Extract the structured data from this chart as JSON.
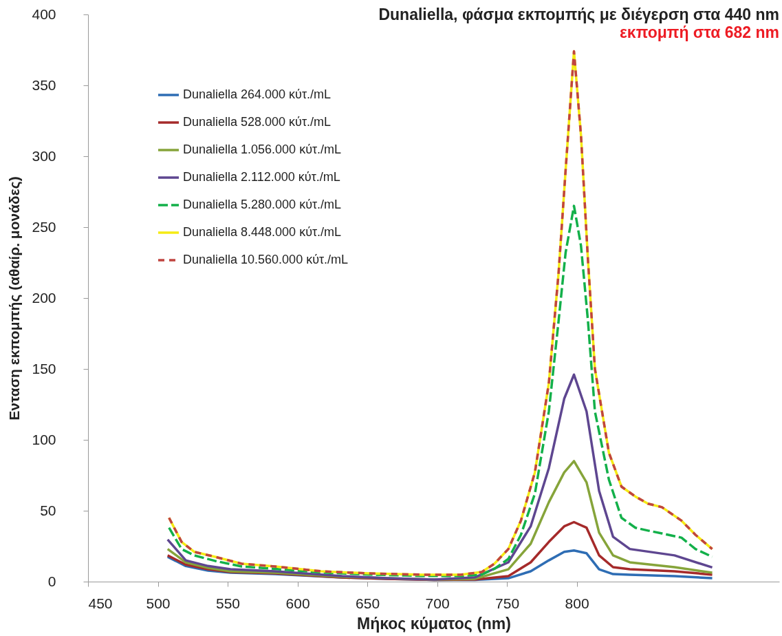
{
  "chart_data": {
    "type": "line",
    "title": "Dunaliella, φάσμα εκπομπής με διέγερση στα 440 nm",
    "subtitle": "εκπομπή στα 682 nm",
    "xlabel": "Μήκος κύματος (nm)",
    "ylabel": "Ενταση εκπομπής (αθαίρ. μονάδες)",
    "xlim": [
      450,
      945
    ],
    "xticks": [
      450,
      500,
      550,
      600,
      650,
      700,
      750,
      800
    ],
    "ylim": [
      0,
      400
    ],
    "yticks": [
      0,
      50,
      100,
      150,
      200,
      250,
      300,
      350,
      400
    ],
    "grid": false,
    "legend": "top left",
    "marker": "none",
    "series": [
      {
        "name": "Dunaliella 264.000 κύτ./mL",
        "color": "#2e6db4",
        "line_style": "solid",
        "x": [
          507,
          520,
          536,
          552,
          584,
          632,
          664,
          698,
          727,
          751,
          767,
          780,
          791,
          798,
          807,
          816,
          826,
          838,
          870,
          897
        ],
        "values": [
          17.5,
          11,
          7.8,
          6.3,
          5.3,
          2.9,
          1.9,
          1.2,
          1.2,
          2.4,
          7.3,
          15,
          21,
          22,
          20,
          8.7,
          5.3,
          4.9,
          3.9,
          2.4
        ]
      },
      {
        "name": "Dunaliella 528.000 κύτ./mL",
        "color": "#a52a2a",
        "line_style": "solid",
        "x": [
          507,
          520,
          536,
          552,
          584,
          632,
          664,
          698,
          727,
          751,
          767,
          780,
          791,
          798,
          807,
          816,
          826,
          838,
          870,
          897
        ],
        "values": [
          18.5,
          12,
          8.7,
          6.8,
          5.8,
          2.9,
          1.9,
          1.2,
          1.5,
          3.9,
          13.6,
          28,
          39,
          42,
          38,
          18.5,
          10.2,
          8.7,
          7.3,
          4.9
        ]
      },
      {
        "name": "Dunaliella 1.056.000 κύτ./mL",
        "color": "#86a43a",
        "line_style": "solid",
        "x": [
          507,
          520,
          536,
          552,
          584,
          632,
          664,
          698,
          727,
          751,
          767,
          780,
          791,
          798,
          807,
          816,
          826,
          838,
          870,
          897
        ],
        "values": [
          23,
          13.6,
          9.7,
          7.3,
          6.3,
          3.4,
          2.4,
          1.5,
          2,
          8.7,
          26.7,
          56,
          77,
          85,
          70,
          34.5,
          18.5,
          13.6,
          10.2,
          6.3
        ]
      },
      {
        "name": "Dunaliella 2.112.000 κύτ./mL",
        "color": "#5e4690",
        "line_style": "solid",
        "x": [
          507,
          520,
          536,
          552,
          584,
          632,
          664,
          698,
          727,
          751,
          767,
          780,
          791,
          798,
          807,
          816,
          826,
          838,
          870,
          897
        ],
        "values": [
          29.7,
          15,
          11,
          8.7,
          7.3,
          3.9,
          2.4,
          1.5,
          3,
          13.6,
          39,
          80,
          129,
          146,
          120,
          64,
          31.6,
          23,
          18.5,
          10
        ]
      },
      {
        "name": "Dunaliella 5.280.000 κύτ./mL",
        "color": "#13b04a",
        "line_style": "dashed",
        "x": [
          508,
          517,
          526,
          541,
          560,
          584,
          617,
          651,
          689,
          717,
          732,
          741,
          751,
          760,
          770,
          780,
          787,
          792,
          798,
          803,
          808,
          813,
          823,
          832,
          842,
          851,
          861,
          875,
          885,
          897
        ],
        "values": [
          38,
          23,
          18.5,
          14.6,
          10.7,
          9,
          6.5,
          5,
          4,
          4,
          5,
          9,
          16,
          33,
          62,
          120,
          184,
          232,
          265,
          237,
          184,
          120,
          72,
          45,
          38,
          36,
          34,
          31,
          23,
          17.5
        ]
      },
      {
        "name": "Dunaliella 8.448.000 κύτ./mL",
        "color": "#f5eb14",
        "line_style": "solid",
        "x": [
          508,
          517,
          526,
          541,
          560,
          584,
          617,
          651,
          689,
          717,
          732,
          741,
          751,
          760,
          770,
          780,
          787,
          792,
          798,
          803,
          808,
          813,
          823,
          832,
          842,
          851,
          861,
          875,
          885,
          897
        ],
        "values": [
          45,
          28,
          21,
          17.5,
          12.6,
          10.7,
          7.3,
          5.8,
          4.9,
          4.9,
          6.8,
          12.6,
          23,
          43,
          77,
          140,
          218,
          290,
          374,
          315,
          227,
          150,
          91,
          67,
          60,
          55,
          52.5,
          43,
          33,
          23
        ]
      },
      {
        "name": "Dunaliella 10.560.000 κύτ./mL",
        "color": "#c0443f",
        "line_style": "dotted",
        "x": [
          508,
          517,
          526,
          541,
          560,
          584,
          617,
          651,
          689,
          717,
          732,
          741,
          751,
          760,
          770,
          780,
          787,
          792,
          798,
          803,
          808,
          813,
          823,
          832,
          842,
          851,
          861,
          875,
          885,
          897
        ],
        "values": [
          45,
          28,
          21,
          17.5,
          12.6,
          10.7,
          7.3,
          5.8,
          4.9,
          4.9,
          6.8,
          12.6,
          23,
          43,
          77,
          140,
          218,
          290,
          374,
          315,
          227,
          150,
          91,
          67,
          60,
          55,
          52.5,
          43,
          33,
          23
        ]
      }
    ]
  }
}
